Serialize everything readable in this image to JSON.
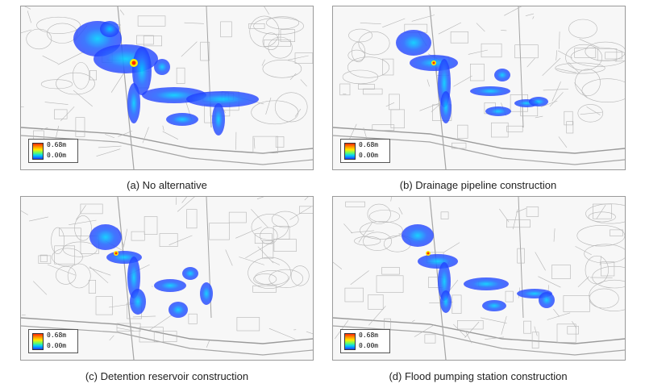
{
  "panels": [
    {
      "caption": "(a) No alternative",
      "legend_max": "0.68m",
      "legend_min": "0.00m"
    },
    {
      "caption": "(b) Drainage pipeline construction",
      "legend_max": "0.68m",
      "legend_min": "0.00m"
    },
    {
      "caption": "(c) Detention reservoir construction",
      "legend_max": "0.68m",
      "legend_min": "0.00m"
    },
    {
      "caption": "(d) Flood pumping station construction",
      "legend_max": "0.68m",
      "legend_min": "0.00m"
    }
  ],
  "colors": {
    "flood_low": "#1e3cff",
    "flood_mid": "#00ccff",
    "flood_high": "#ff2a00",
    "basemap_lines": "#b5b5b5"
  }
}
